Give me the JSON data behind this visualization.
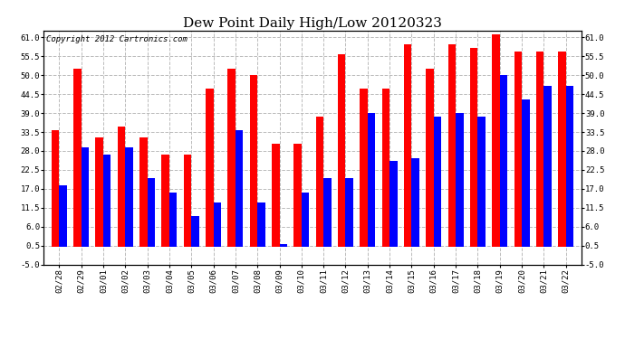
{
  "title": "Dew Point Daily High/Low 20120323",
  "copyright": "Copyright 2012 Cartronics.com",
  "dates": [
    "02/28",
    "02/29",
    "03/01",
    "03/02",
    "03/03",
    "03/04",
    "03/05",
    "03/06",
    "03/07",
    "03/08",
    "03/09",
    "03/10",
    "03/11",
    "03/12",
    "03/13",
    "03/14",
    "03/15",
    "03/16",
    "03/17",
    "03/18",
    "03/19",
    "03/20",
    "03/21",
    "03/22"
  ],
  "high": [
    34,
    52,
    32,
    35,
    32,
    27,
    27,
    46,
    52,
    50,
    30,
    30,
    38,
    56,
    46,
    46,
    59,
    52,
    59,
    58,
    62,
    57,
    57,
    57
  ],
  "low": [
    18,
    29,
    27,
    29,
    20,
    16,
    9,
    13,
    34,
    13,
    1,
    16,
    20,
    20,
    39,
    25,
    26,
    38,
    39,
    38,
    50,
    43,
    47,
    47
  ],
  "high_color": "#ff0000",
  "low_color": "#0000ff",
  "bg_color": "#ffffff",
  "plot_bg": "#ffffff",
  "ylim": [
    -5,
    63
  ],
  "yticks": [
    -5.0,
    0.5,
    6.0,
    11.5,
    17.0,
    22.5,
    28.0,
    33.5,
    39.0,
    44.5,
    50.0,
    55.5,
    61.0
  ],
  "grid_color": "#bbbbbb",
  "bar_width": 0.35,
  "title_fontsize": 11,
  "tick_fontsize": 6.5,
  "copyright_fontsize": 6.5,
  "border_color": "#000000"
}
